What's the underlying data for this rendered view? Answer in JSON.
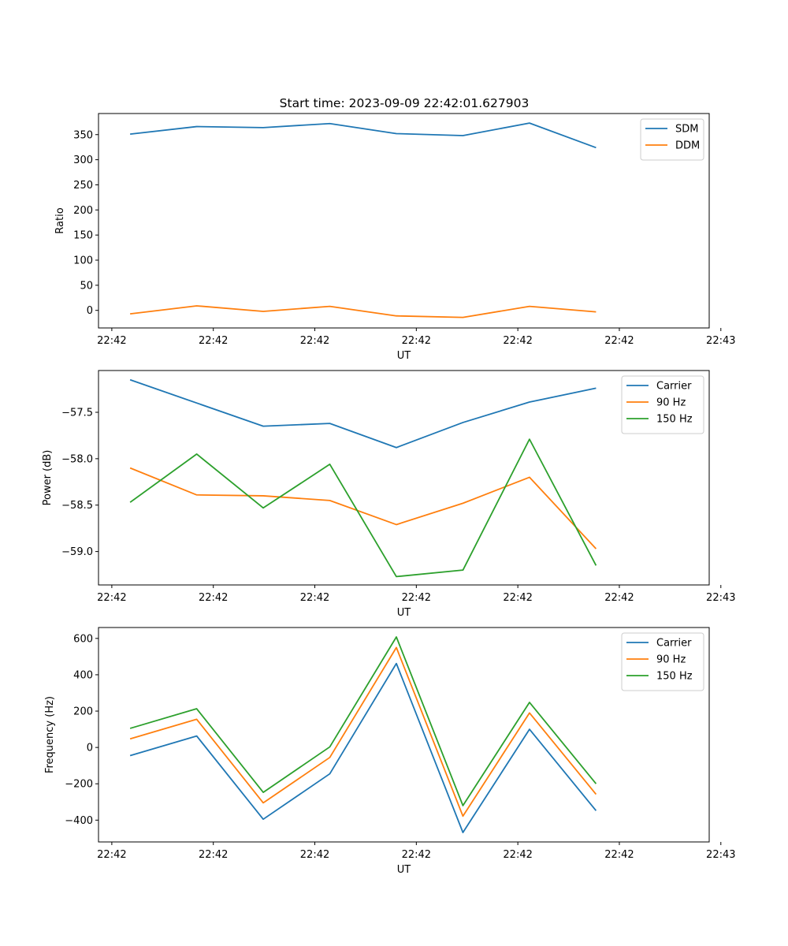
{
  "figure_title": "Start time: 2023-09-09 22:42:01.627903",
  "chart_data": [
    {
      "type": "line",
      "title": "Start time: 2023-09-09 22:42:01.627903",
      "xlabel": "UT",
      "ylabel": "Ratio",
      "x": [
        1,
        2,
        3,
        4,
        5,
        6,
        7,
        8
      ],
      "xlim": [
        0.525,
        9.7
      ],
      "xticks": [
        0.725,
        2.25,
        3.775,
        5.3,
        6.825,
        8.35,
        9.875
      ],
      "xtick_labels": [
        "22:42",
        "22:42",
        "22:42",
        "22:42",
        "22:42",
        "22:42",
        "22:43"
      ],
      "ylim": [
        -35,
        392
      ],
      "yticks": [
        0,
        50,
        100,
        150,
        200,
        250,
        300,
        350
      ],
      "ytick_labels": [
        "0",
        "50",
        "100",
        "150",
        "200",
        "250",
        "300",
        "350"
      ],
      "legend_position": "top-right",
      "series": [
        {
          "name": "SDM",
          "color": "#1f77b4",
          "values": [
            351,
            366,
            364,
            372,
            352,
            348,
            373,
            324
          ]
        },
        {
          "name": "DDM",
          "color": "#ff7f0e",
          "values": [
            -7,
            9,
            -2,
            8,
            -11,
            -14,
            8,
            -3
          ]
        }
      ]
    },
    {
      "type": "line",
      "title": "",
      "xlabel": "UT",
      "ylabel": "Power (dB)",
      "x": [
        1,
        2,
        3,
        4,
        5,
        6,
        7,
        8
      ],
      "xlim": [
        0.525,
        9.7
      ],
      "xticks": [
        0.725,
        2.25,
        3.775,
        5.3,
        6.825,
        8.35,
        9.875
      ],
      "xtick_labels": [
        "22:42",
        "22:42",
        "22:42",
        "22:42",
        "22:42",
        "22:42",
        "22:43"
      ],
      "ylim": [
        -59.36,
        -57.05
      ],
      "yticks": [
        -59.0,
        -58.5,
        -58.0,
        -57.5
      ],
      "ytick_labels": [
        "−59.0",
        "−58.5",
        "−58.0",
        "−57.5"
      ],
      "legend_position": "top-right",
      "series": [
        {
          "name": "Carrier",
          "color": "#1f77b4",
          "values": [
            -57.15,
            -57.4,
            -57.65,
            -57.62,
            -57.88,
            -57.61,
            -57.39,
            -57.24
          ]
        },
        {
          "name": "90 Hz",
          "color": "#ff7f0e",
          "values": [
            -58.1,
            -58.39,
            -58.4,
            -58.45,
            -58.71,
            -58.48,
            -58.2,
            -58.97
          ]
        },
        {
          "name": "150 Hz",
          "color": "#2ca02c",
          "values": [
            -58.47,
            -57.95,
            -58.53,
            -58.06,
            -59.27,
            -59.2,
            -57.79,
            -59.15
          ]
        }
      ]
    },
    {
      "type": "line",
      "title": "",
      "xlabel": "UT",
      "ylabel": "Frequency (Hz)",
      "x": [
        1,
        2,
        3,
        4,
        5,
        6,
        7,
        8
      ],
      "xlim": [
        0.525,
        9.7
      ],
      "xticks": [
        0.725,
        2.25,
        3.775,
        5.3,
        6.825,
        8.35,
        9.875
      ],
      "xtick_labels": [
        "22:42",
        "22:42",
        "22:42",
        "22:42",
        "22:42",
        "22:42",
        "22:43"
      ],
      "ylim": [
        -520,
        660
      ],
      "yticks": [
        -400,
        -200,
        0,
        200,
        400,
        600
      ],
      "ytick_labels": [
        "−400",
        "−200",
        "0",
        "200",
        "400",
        "600"
      ],
      "legend_position": "top-right",
      "series": [
        {
          "name": "Carrier",
          "color": "#1f77b4",
          "values": [
            -45,
            63,
            -395,
            -145,
            462,
            -468,
            100,
            -348
          ]
        },
        {
          "name": "90 Hz",
          "color": "#ff7f0e",
          "values": [
            47,
            155,
            -305,
            -55,
            550,
            -378,
            190,
            -258
          ]
        },
        {
          "name": "150 Hz",
          "color": "#2ca02c",
          "values": [
            105,
            213,
            -247,
            3,
            608,
            -320,
            248,
            -200
          ]
        }
      ]
    }
  ]
}
